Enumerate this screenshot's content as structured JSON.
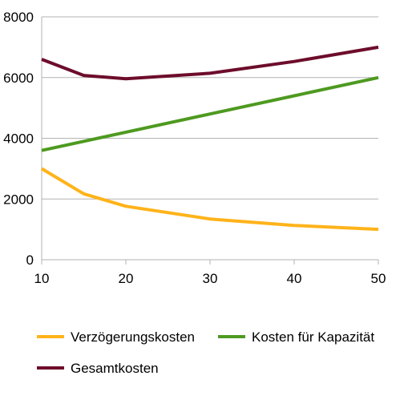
{
  "chart_data": {
    "type": "line",
    "x": [
      10,
      15,
      20,
      30,
      40,
      50
    ],
    "xticks": [
      "10",
      "20",
      "30",
      "40",
      "50"
    ],
    "xtick_values": [
      10,
      20,
      30,
      40,
      50
    ],
    "xlim": [
      10,
      50
    ],
    "yticks": [
      "0",
      "2000",
      "4000",
      "6000",
      "8000"
    ],
    "ytick_values": [
      0,
      2000,
      4000,
      6000,
      8000
    ],
    "ylim": [
      0,
      8000
    ],
    "grid": "horizontal",
    "legend": "bottom",
    "series": [
      {
        "name": "Verzögerungskosten",
        "color": "#ffb31a",
        "values": [
          3000,
          2170,
          1760,
          1340,
          1130,
          1000
        ]
      },
      {
        "name": "Kosten für Kapazität",
        "color": "#4e9a20",
        "values": [
          3600,
          3900,
          4200,
          4800,
          5400,
          6000
        ]
      },
      {
        "name": "Gesamtkosten",
        "color": "#6d0c2b",
        "values": [
          6600,
          6070,
          5960,
          6140,
          6530,
          7000
        ]
      }
    ]
  }
}
